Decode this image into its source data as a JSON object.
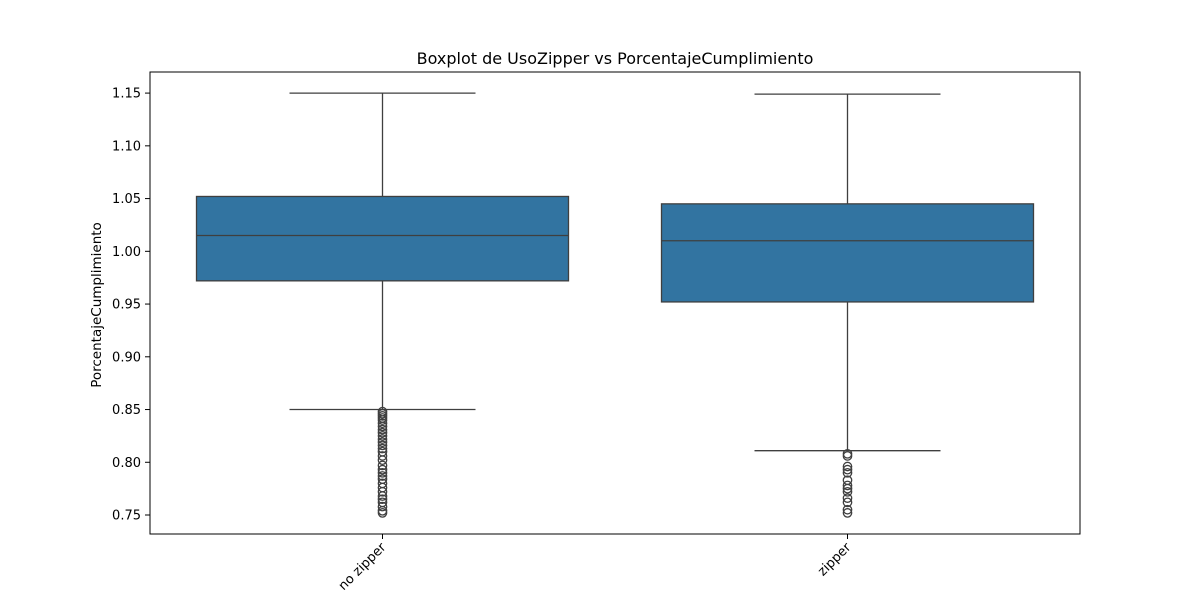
{
  "chart_data": {
    "type": "boxplot",
    "title": "Boxplot de UsoZipper vs PorcentajeCumplimiento",
    "xlabel": "",
    "ylabel": "PorcentajeCumplimiento",
    "ylim": [
      0.732,
      1.17
    ],
    "yticks": [
      0.75,
      0.8,
      0.85,
      0.9,
      0.95,
      1.0,
      1.05,
      1.1,
      1.15
    ],
    "ytick_labels": [
      "0.75",
      "0.80",
      "0.85",
      "0.90",
      "0.95",
      "1.00",
      "1.05",
      "1.10",
      "1.15"
    ],
    "categories": [
      "no zipper",
      "zipper"
    ],
    "grid": false,
    "box_color": "#3274a1",
    "edge_color": "#3f3f3f",
    "boxes": [
      {
        "category": "no zipper",
        "whisker_low": 0.85,
        "q1": 0.972,
        "median": 1.015,
        "q3": 1.052,
        "whisker_high": 1.15,
        "outliers": [
          0.848,
          0.846,
          0.844,
          0.842,
          0.84,
          0.837,
          0.834,
          0.831,
          0.828,
          0.825,
          0.822,
          0.819,
          0.816,
          0.813,
          0.81,
          0.806,
          0.802,
          0.797,
          0.793,
          0.79,
          0.787,
          0.784,
          0.78,
          0.776,
          0.772,
          0.768,
          0.765,
          0.762,
          0.758,
          0.754,
          0.752
        ]
      },
      {
        "category": "zipper",
        "whisker_low": 0.811,
        "q1": 0.952,
        "median": 1.01,
        "q3": 1.045,
        "whisker_high": 1.149,
        "outliers": [
          0.808,
          0.806,
          0.796,
          0.793,
          0.79,
          0.783,
          0.778,
          0.775,
          0.772,
          0.766,
          0.762,
          0.755,
          0.752
        ]
      }
    ]
  }
}
